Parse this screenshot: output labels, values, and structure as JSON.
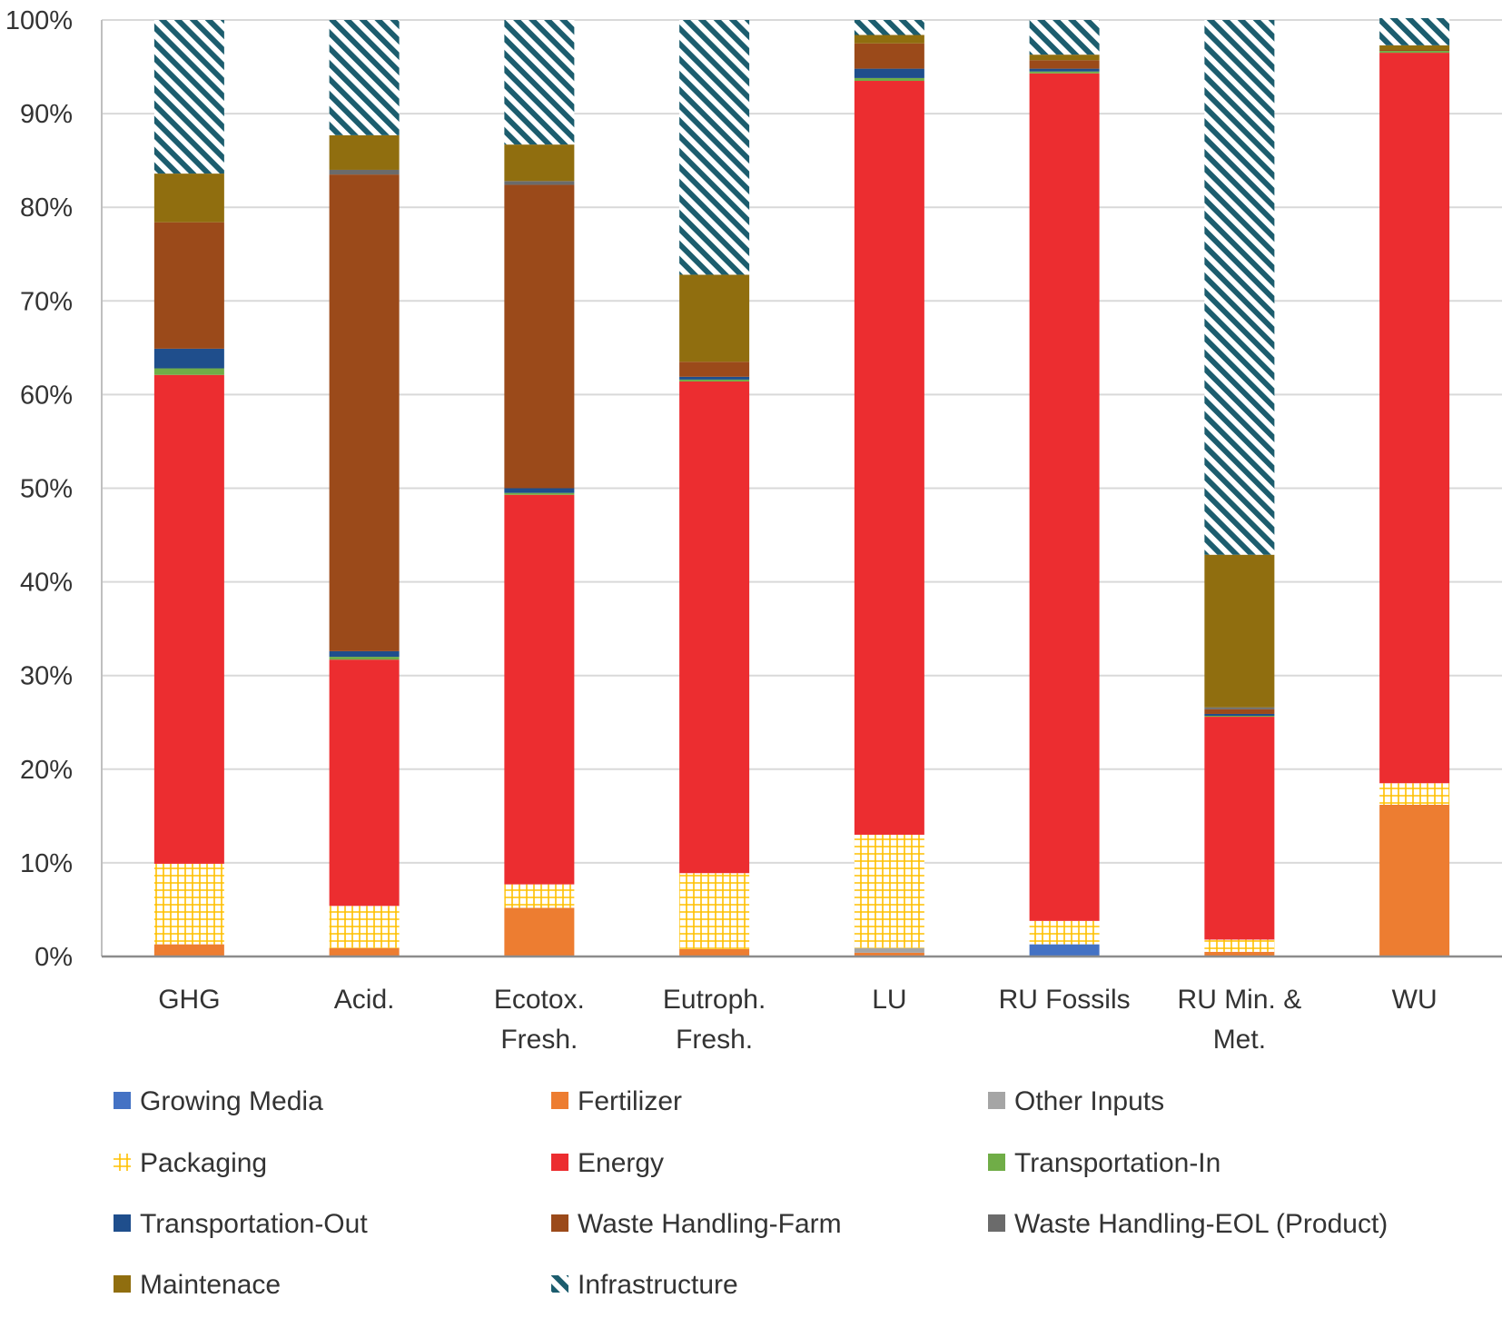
{
  "chart_data": {
    "type": "bar",
    "stacked": true,
    "title": "",
    "xlabel": "",
    "ylabel": "",
    "ylim": [
      0,
      100
    ],
    "y_ticks": [
      "0%",
      "10%",
      "20%",
      "30%",
      "40%",
      "50%",
      "60%",
      "70%",
      "80%",
      "90%",
      "100%"
    ],
    "y_tick_values": [
      0,
      10,
      20,
      30,
      40,
      50,
      60,
      70,
      80,
      90,
      100
    ],
    "grid": true,
    "legend_position": "bottom",
    "categories": [
      "GHG",
      "Acid.",
      "Ecotox. Fresh.",
      "Eutroph. Fresh.",
      "LU",
      "RU Fossils",
      "RU Min. & Met.",
      "WU"
    ],
    "category_lines": [
      [
        "GHG"
      ],
      [
        "Acid."
      ],
      [
        "Ecotox.",
        "Fresh."
      ],
      [
        "Eutroph.",
        "Fresh."
      ],
      [
        "LU"
      ],
      [
        "RU Fossils"
      ],
      [
        "RU Min. &",
        "Met."
      ],
      [
        "WU"
      ]
    ],
    "series": [
      {
        "name": "Growing Media",
        "color": "#4472c4",
        "pattern": "solid",
        "values": [
          0.0,
          0.0,
          0.0,
          0.0,
          0.0,
          1.3,
          0.0,
          0.0
        ]
      },
      {
        "name": "Fertilizer",
        "color": "#ed7d31",
        "pattern": "solid",
        "values": [
          1.3,
          0.9,
          5.2,
          0.8,
          0.4,
          0.0,
          0.5,
          16.2
        ]
      },
      {
        "name": "Other Inputs",
        "color": "#a5a5a5",
        "pattern": "solid",
        "values": [
          0.0,
          0.0,
          0.0,
          0.0,
          0.5,
          0.0,
          0.0,
          0.0
        ]
      },
      {
        "name": "Packaging",
        "color": "#ffc000",
        "pattern": "grid",
        "values": [
          8.6,
          4.5,
          2.5,
          8.1,
          12.1,
          2.5,
          1.3,
          2.3
        ]
      },
      {
        "name": "Energy",
        "color": "#ec2d30",
        "pattern": "solid",
        "values": [
          52.2,
          26.3,
          41.6,
          52.5,
          80.5,
          90.5,
          23.8,
          78.0
        ]
      },
      {
        "name": "Transportation-In",
        "color": "#70ad47",
        "pattern": "solid",
        "values": [
          0.7,
          0.3,
          0.2,
          0.2,
          0.3,
          0.2,
          0.1,
          0.2
        ]
      },
      {
        "name": "Transportation-Out",
        "color": "#1f4e8c",
        "pattern": "solid",
        "values": [
          2.1,
          0.6,
          0.5,
          0.3,
          1.0,
          0.3,
          0.2,
          0.0
        ]
      },
      {
        "name": "Waste Handling-Farm",
        "color": "#9b4a1a",
        "pattern": "solid",
        "values": [
          13.5,
          50.9,
          32.4,
          1.6,
          2.7,
          0.9,
          0.5,
          0.1
        ]
      },
      {
        "name": "Waste Handling-EOL (Product)",
        "color": "#6b6b6b",
        "pattern": "solid",
        "values": [
          0.0,
          0.5,
          0.4,
          0.0,
          0.0,
          0.0,
          0.2,
          0.0
        ]
      },
      {
        "name": "Maintenace",
        "color": "#906e0f",
        "pattern": "solid",
        "values": [
          5.2,
          3.7,
          3.9,
          9.3,
          0.9,
          0.6,
          16.3,
          0.5
        ]
      },
      {
        "name": "Infrastructure",
        "color": "#1c5d6e",
        "pattern": "diagonal",
        "values": [
          16.4,
          12.3,
          13.3,
          27.2,
          1.6,
          3.7,
          57.1,
          2.9
        ]
      }
    ],
    "legend_order": [
      "Growing Media",
      "Fertilizer",
      "Other Inputs",
      "Packaging",
      "Energy",
      "Transportation-In",
      "Transportation-Out",
      "Waste Handling-Farm",
      "Waste Handling-EOL (Product)",
      "Maintenace",
      "Infrastructure"
    ]
  }
}
